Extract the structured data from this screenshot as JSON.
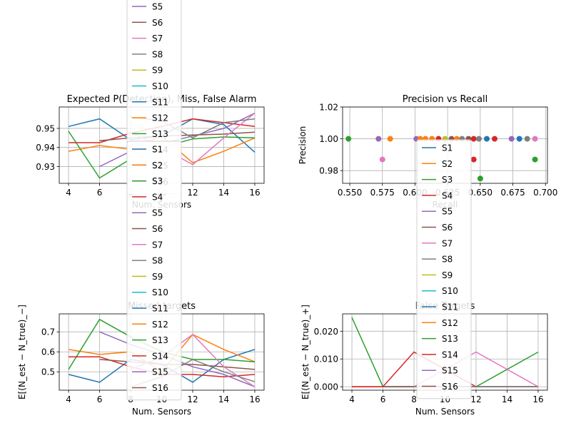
{
  "palette": [
    "#1f77b4",
    "#ff7f0e",
    "#2ca02c",
    "#d62728",
    "#9467bd",
    "#8c564b",
    "#e377c2",
    "#7f7f7f",
    "#bcbd22",
    "#17becf"
  ],
  "chart_data": [
    {
      "id": "p1",
      "type": "line",
      "title": "Expected P(Detection), Miss, False Alarm",
      "xlabel": "Num. Sensors",
      "ylabel": "",
      "xlim": [
        3.4,
        16.6
      ],
      "ylim": [
        0.9212,
        0.9612
      ],
      "xticks": [
        4,
        6,
        8,
        10,
        12,
        14,
        16
      ],
      "yticks": [
        0.93,
        0.94,
        0.95
      ],
      "ytick_labels": [
        "0.93",
        "0.94",
        "0.95"
      ],
      "grid": true,
      "series": [
        {
          "name": "S1",
          "x": [
            4,
            6,
            8,
            10,
            12,
            14,
            16
          ],
          "y": [
            0.951,
            0.955,
            0.944,
            0.946,
            0.955,
            0.952,
            0.9375
          ]
        },
        {
          "name": "S2",
          "x": [
            4,
            6,
            8,
            10,
            12,
            14,
            16
          ],
          "y": [
            0.938,
            0.941,
            0.939,
            0.946,
            0.932,
            0.938,
            0.945
          ]
        },
        {
          "name": "S3",
          "x": [
            4,
            6,
            8,
            10,
            12,
            14,
            16
          ],
          "y": [
            0.9485,
            0.924,
            0.934,
            0.94,
            0.9445,
            0.9455,
            0.945
          ]
        },
        {
          "name": "S4",
          "x": [
            4,
            6,
            8,
            10,
            12,
            14,
            16
          ],
          "y": [
            0.9425,
            0.9425,
            0.9475,
            0.951,
            0.955,
            0.953,
            0.951
          ]
        },
        {
          "name": "S5",
          "x": [
            6,
            8,
            10,
            12,
            14,
            16
          ],
          "y": [
            0.93,
            0.938,
            0.942,
            0.946,
            0.95,
            0.958
          ]
        },
        {
          "name": "S6",
          "x": [
            6,
            8,
            10,
            12,
            14,
            16
          ],
          "y": [
            0.9435,
            0.945,
            0.946,
            0.9465,
            0.947,
            0.948
          ]
        },
        {
          "name": "S7",
          "x": [
            8,
            10,
            12,
            14,
            16
          ],
          "y": [
            0.948,
            0.94,
            0.931,
            0.945,
            0.958
          ]
        },
        {
          "name": "S8",
          "x": [
            8,
            10,
            12,
            14,
            16
          ],
          "y": [
            0.956,
            0.954,
            0.945,
            0.953,
            0.955
          ]
        }
      ],
      "legend": {
        "placement": "overflowing above and below the axes",
        "entries": [
          "S5",
          "S6",
          "S7",
          "S8",
          "S9",
          "S10",
          "S11",
          "S12",
          "S13",
          "S14",
          "S15",
          "S16"
        ]
      }
    },
    {
      "id": "p2",
      "type": "scatter",
      "title": "Precision vs Recall",
      "xlabel": "Recall",
      "ylabel": "Precision",
      "xlim": [
        0.5445,
        0.7015
      ],
      "ylim": [
        0.972,
        1.02
      ],
      "xticks": [
        0.55,
        0.575,
        0.6,
        0.625,
        0.65,
        0.675,
        0.7
      ],
      "xtick_labels": [
        "0.550",
        "0.575",
        "0.600",
        "0.625",
        "0.650",
        "0.675",
        "0.700"
      ],
      "yticks": [
        0.98,
        1.0,
        1.02
      ],
      "ytick_labels": [
        "0.98",
        "1.00",
        "1.02"
      ],
      "grid": true,
      "points": [
        {
          "x": 0.549,
          "y": 1.0,
          "series": "S3"
        },
        {
          "x": 0.572,
          "y": 1.0,
          "series": "S5"
        },
        {
          "x": 0.575,
          "y": 0.987,
          "series": "S7"
        },
        {
          "x": 0.581,
          "y": 1.0,
          "series": "S2"
        },
        {
          "x": 0.601,
          "y": 1.0,
          "series": "S5"
        },
        {
          "x": 0.604,
          "y": 1.0,
          "series": "S2"
        },
        {
          "x": 0.608,
          "y": 1.0,
          "series": "S2"
        },
        {
          "x": 0.613,
          "y": 1.0,
          "series": "S2"
        },
        {
          "x": 0.618,
          "y": 1.0,
          "series": "S4"
        },
        {
          "x": 0.623,
          "y": 1.0,
          "series": "S9"
        },
        {
          "x": 0.628,
          "y": 1.0,
          "series": "S6"
        },
        {
          "x": 0.632,
          "y": 1.0,
          "series": "S2"
        },
        {
          "x": 0.636,
          "y": 1.0,
          "series": "S8"
        },
        {
          "x": 0.641,
          "y": 1.0,
          "series": "S6"
        },
        {
          "x": 0.645,
          "y": 1.0,
          "series": "S4"
        },
        {
          "x": 0.645,
          "y": 0.987,
          "series": "S4"
        },
        {
          "x": 0.649,
          "y": 1.0,
          "series": "S8"
        },
        {
          "x": 0.65,
          "y": 0.975,
          "series": "S3"
        },
        {
          "x": 0.655,
          "y": 1.0,
          "series": "S1"
        },
        {
          "x": 0.661,
          "y": 1.0,
          "series": "S4"
        },
        {
          "x": 0.674,
          "y": 1.0,
          "series": "S5"
        },
        {
          "x": 0.68,
          "y": 1.0,
          "series": "S1"
        },
        {
          "x": 0.686,
          "y": 1.0,
          "series": "S8"
        },
        {
          "x": 0.692,
          "y": 1.0,
          "series": "S7"
        },
        {
          "x": 0.692,
          "y": 0.987,
          "series": "S3"
        }
      ],
      "legend": {
        "placement": "overflowing below the axes",
        "entries": [
          "S1",
          "S2",
          "S3",
          "S4",
          "S5",
          "S6",
          "S7",
          "S8",
          "S9",
          "S10",
          "S11",
          "S12",
          "S13",
          "S14",
          "S15",
          "S16"
        ]
      }
    },
    {
      "id": "p3",
      "type": "line",
      "title": "Missed targets",
      "xlabel": "Num. Sensors",
      "ylabel": "E[(N_est − N_true)_−]",
      "xlim": [
        3.4,
        16.6
      ],
      "ylim": [
        0.408,
        0.79
      ],
      "xticks": [
        4,
        6,
        8,
        10,
        12,
        14,
        16
      ],
      "yticks": [
        0.5,
        0.6,
        0.7
      ],
      "ytick_labels": [
        "0.5",
        "0.6",
        "0.7"
      ],
      "grid": true,
      "series": [
        {
          "name": "S1",
          "x": [
            4,
            6,
            8,
            10,
            12,
            14,
            16
          ],
          "y": [
            0.487,
            0.448,
            0.562,
            0.538,
            0.448,
            0.562,
            0.612
          ]
        },
        {
          "name": "S2",
          "x": [
            4,
            6,
            8,
            10,
            12,
            14,
            16
          ],
          "y": [
            0.612,
            0.587,
            0.6,
            0.5,
            0.687,
            0.612,
            0.55
          ]
        },
        {
          "name": "S3",
          "x": [
            4,
            6,
            8,
            10,
            12,
            14,
            16
          ],
          "y": [
            0.512,
            0.762,
            0.675,
            0.6,
            0.562,
            0.562,
            0.55
          ]
        },
        {
          "name": "S4",
          "x": [
            4,
            6,
            8,
            10,
            12,
            14,
            16
          ],
          "y": [
            0.575,
            0.575,
            0.525,
            0.487,
            0.487,
            0.475,
            0.487
          ]
        },
        {
          "name": "S5",
          "x": [
            6,
            8,
            10,
            12,
            14,
            16
          ],
          "y": [
            0.7,
            0.637,
            0.587,
            0.525,
            0.487,
            0.425
          ]
        },
        {
          "name": "S6",
          "x": [
            6,
            8,
            10,
            12,
            14,
            16
          ],
          "y": [
            0.562,
            0.55,
            0.537,
            0.537,
            0.525,
            0.512
          ]
        },
        {
          "name": "S7",
          "x": [
            8,
            10,
            12,
            14,
            16
          ],
          "y": [
            0.512,
            0.575,
            0.687,
            0.525,
            0.425
          ]
        },
        {
          "name": "S8",
          "x": [
            8,
            10,
            12,
            14,
            16
          ],
          "y": [
            0.425,
            0.475,
            0.562,
            0.5,
            0.45
          ]
        }
      ]
    },
    {
      "id": "p4",
      "type": "line",
      "title": "False Targets",
      "xlabel": "Num. Sensors",
      "ylabel": "E[(N_est − N_true)_+]",
      "xlim": [
        3.4,
        16.6
      ],
      "ylim": [
        -0.00125,
        0.02625
      ],
      "xticks": [
        4,
        6,
        8,
        10,
        12,
        14,
        16
      ],
      "yticks": [
        0.0,
        0.01,
        0.02
      ],
      "ytick_labels": [
        "0.000",
        "0.010",
        "0.020"
      ],
      "grid": true,
      "series": [
        {
          "name": "S1",
          "x": [
            4,
            6,
            8,
            10,
            12,
            14,
            16
          ],
          "y": [
            0,
            0,
            0,
            0,
            0,
            0,
            0
          ]
        },
        {
          "name": "S2",
          "x": [
            4,
            6,
            8,
            10,
            12,
            14,
            16
          ],
          "y": [
            0,
            0,
            0,
            0,
            0,
            0,
            0
          ]
        },
        {
          "name": "S3",
          "x": [
            4,
            6,
            8,
            10,
            12,
            14,
            16
          ],
          "y": [
            0.025,
            0,
            0,
            0,
            0,
            0.00625,
            0.0125
          ]
        },
        {
          "name": "S4",
          "x": [
            4,
            6,
            8,
            10,
            12,
            14,
            16
          ],
          "y": [
            0,
            0,
            0.0125,
            0.00625,
            0,
            0,
            0
          ]
        },
        {
          "name": "S5",
          "x": [
            6,
            8,
            10,
            12,
            14,
            16
          ],
          "y": [
            0,
            0,
            0,
            0,
            0,
            0
          ]
        },
        {
          "name": "S6",
          "x": [
            6,
            8,
            10,
            12,
            14,
            16
          ],
          "y": [
            0,
            0,
            0,
            0,
            0,
            0
          ]
        },
        {
          "name": "S7",
          "x": [
            8,
            10,
            12,
            14,
            16
          ],
          "y": [
            0,
            0.00625,
            0.0125,
            0.00625,
            0
          ]
        },
        {
          "name": "S8",
          "x": [
            8,
            10,
            12,
            14,
            16
          ],
          "y": [
            0,
            0,
            0,
            0,
            0
          ]
        }
      ],
      "legend": {
        "placement": "overflowing above the axes",
        "entries": [
          "S1",
          "S2",
          "S3",
          "S4",
          "S5",
          "S6",
          "S7",
          "S8",
          "S9",
          "S10",
          "S11",
          "S12",
          "S13",
          "S14",
          "S15",
          "S16"
        ]
      }
    }
  ]
}
